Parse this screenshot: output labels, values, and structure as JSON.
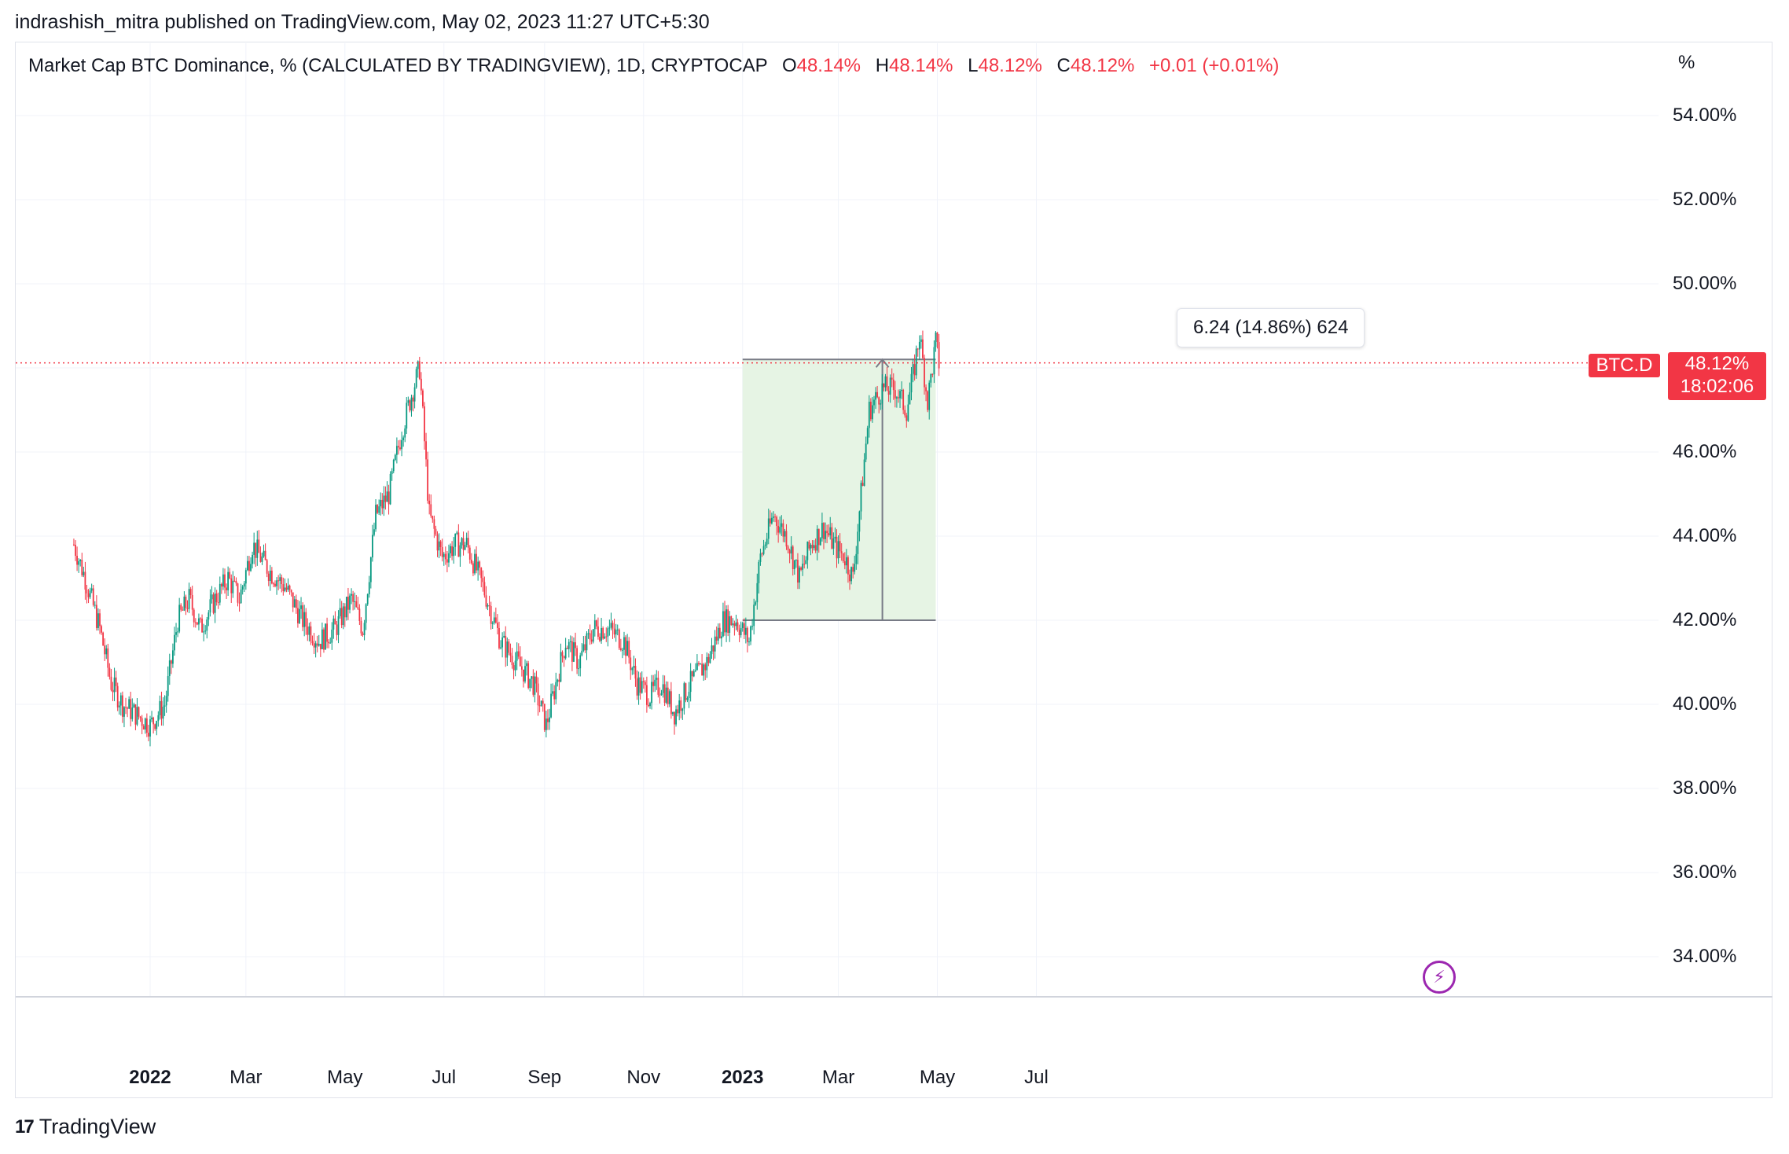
{
  "header": {
    "published": "indrashish_mitra published on TradingView.com, May 02, 2023 11:27 UTC+5:30"
  },
  "legend": {
    "symbol": "Market Cap BTC Dominance, % (CALCULATED BY TRADINGVIEW), 1D, CRYPTOCAP",
    "o_label": "O",
    "o_value": "48.14%",
    "h_label": "H",
    "h_value": "48.14%",
    "l_label": "L",
    "l_value": "48.12%",
    "c_label": "C",
    "c_value": "48.12%",
    "change": "+0.01 (+0.01%)"
  },
  "price_scale": {
    "unit": "%",
    "ticks": [
      "54.00%",
      "52.00%",
      "50.00%",
      "46.00%",
      "44.00%",
      "42.00%",
      "40.00%",
      "38.00%",
      "36.00%",
      "34.00%"
    ]
  },
  "time_scale": {
    "ticks": [
      {
        "label": "2022",
        "bold": true
      },
      {
        "label": "Mar",
        "bold": false
      },
      {
        "label": "May",
        "bold": false
      },
      {
        "label": "Jul",
        "bold": false
      },
      {
        "label": "Sep",
        "bold": false
      },
      {
        "label": "Nov",
        "bold": false
      },
      {
        "label": "2023",
        "bold": true
      },
      {
        "label": "Mar",
        "bold": false
      },
      {
        "label": "May",
        "bold": false
      },
      {
        "label": "Jul",
        "bold": false
      }
    ]
  },
  "last_price": {
    "symbol_tag": "BTC.D",
    "value": "48.12%",
    "countdown": "18:02:06"
  },
  "measure_tool": {
    "label": "6.24 (14.86%) 624",
    "from_date": "2023-01-01",
    "to_date": "2023-04-30",
    "from_value": 42.0,
    "to_value": 48.2
  },
  "brand": {
    "name": "TradingView"
  },
  "colors": {
    "up": "#089981",
    "down": "#f23645",
    "grid": "#f0f3fa",
    "measure_fill": "#e6f4e4",
    "measure_line": "#787b86",
    "price_line": "#f23645"
  },
  "chart_data": {
    "type": "line",
    "title": "Market Cap BTC Dominance, %",
    "xlabel": "",
    "ylabel": "%",
    "ylim": [
      33.0,
      55.0
    ],
    "xrange": [
      "2021-11-13",
      "2023-08-22"
    ],
    "series": [
      {
        "name": "BTC.D",
        "x": [
          "2021-11-15",
          "2021-11-22",
          "2021-12-01",
          "2021-12-08",
          "2021-12-15",
          "2021-12-22",
          "2022-01-01",
          "2022-01-10",
          "2022-01-18",
          "2022-01-25",
          "2022-02-01",
          "2022-02-10",
          "2022-02-18",
          "2022-02-25",
          "2022-03-05",
          "2022-03-15",
          "2022-03-25",
          "2022-04-05",
          "2022-04-15",
          "2022-04-25",
          "2022-05-05",
          "2022-05-12",
          "2022-05-20",
          "2022-05-28",
          "2022-06-05",
          "2022-06-12",
          "2022-06-16",
          "2022-06-22",
          "2022-06-30",
          "2022-07-08",
          "2022-07-15",
          "2022-07-25",
          "2022-08-05",
          "2022-08-15",
          "2022-08-25",
          "2022-09-02",
          "2022-09-08",
          "2022-09-14",
          "2022-09-22",
          "2022-10-01",
          "2022-10-10",
          "2022-10-20",
          "2022-10-28",
          "2022-11-05",
          "2022-11-12",
          "2022-11-20",
          "2022-11-30",
          "2022-12-10",
          "2022-12-20",
          "2022-12-28",
          "2023-01-05",
          "2023-01-12",
          "2023-01-20",
          "2023-01-28",
          "2023-02-05",
          "2023-02-12",
          "2023-02-20",
          "2023-02-28",
          "2023-03-05",
          "2023-03-10",
          "2023-03-15",
          "2023-03-20",
          "2023-03-28",
          "2023-04-05",
          "2023-04-12",
          "2023-04-16",
          "2023-04-20",
          "2023-04-25",
          "2023-04-30",
          "2023-05-02"
        ],
        "values": [
          43.8,
          43.0,
          41.8,
          40.5,
          40.0,
          39.8,
          39.5,
          40.0,
          42.0,
          42.5,
          41.8,
          42.5,
          43.0,
          42.5,
          43.8,
          43.2,
          42.8,
          42.0,
          41.5,
          41.8,
          42.5,
          41.8,
          44.5,
          45.0,
          46.5,
          47.5,
          48.0,
          44.5,
          43.5,
          43.8,
          43.8,
          42.8,
          41.5,
          41.0,
          40.5,
          39.5,
          40.5,
          41.5,
          41.0,
          41.8,
          41.8,
          41.5,
          40.5,
          40.2,
          40.5,
          39.8,
          40.5,
          41.0,
          42.0,
          42.0,
          41.5,
          43.5,
          44.5,
          44.0,
          43.0,
          43.8,
          44.2,
          43.7,
          43.5,
          43.0,
          45.0,
          47.0,
          47.5,
          47.5,
          47.0,
          47.8,
          48.8,
          47.2,
          48.6,
          48.12
        ]
      }
    ],
    "grid": true,
    "legend": "top-left"
  }
}
